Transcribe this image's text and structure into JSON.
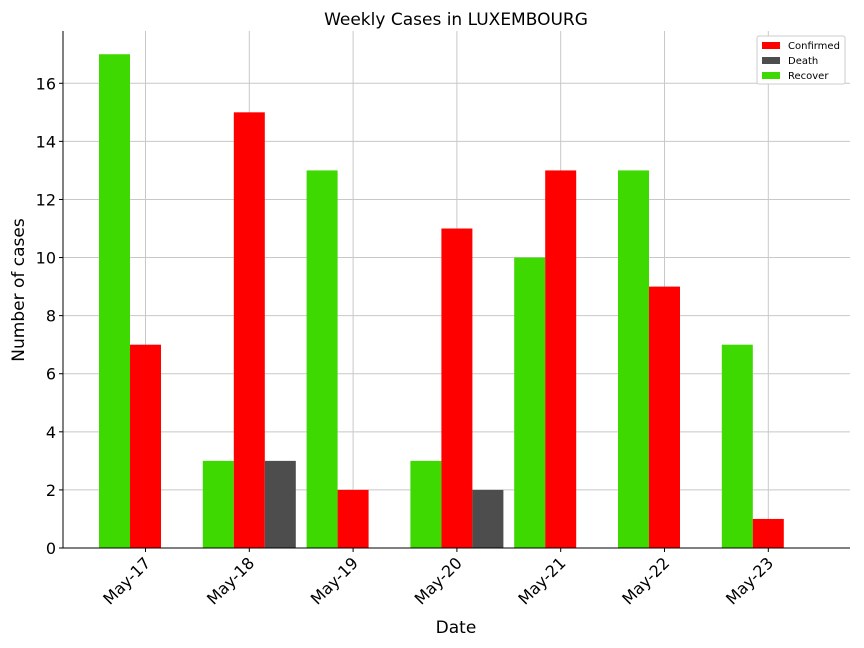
{
  "chart_data": {
    "type": "bar",
    "title": "Weekly Cases in LUXEMBOURG",
    "xlabel": "Date",
    "ylabel": "Number of cases",
    "categories": [
      "May-17",
      "May-18",
      "May-19",
      "May-20",
      "May-21",
      "May-22",
      "May-23"
    ],
    "ylim": [
      0,
      17.8
    ],
    "yticks": [
      0,
      2,
      4,
      6,
      8,
      10,
      12,
      14,
      16
    ],
    "grid": true,
    "legend_position": "top-right",
    "bar_order": [
      "Recover",
      "Confirmed",
      "Death"
    ],
    "series": [
      {
        "name": "Confirmed",
        "color": "#ff0000",
        "values": [
          7,
          15,
          2,
          11,
          13,
          9,
          1
        ]
      },
      {
        "name": "Death",
        "color": "#4d4d4d",
        "values": [
          0,
          3,
          0,
          2,
          0,
          0,
          0
        ]
      },
      {
        "name": "Recover",
        "color": "#3dd900",
        "values": [
          17,
          3,
          13,
          3,
          10,
          13,
          7
        ]
      }
    ]
  }
}
